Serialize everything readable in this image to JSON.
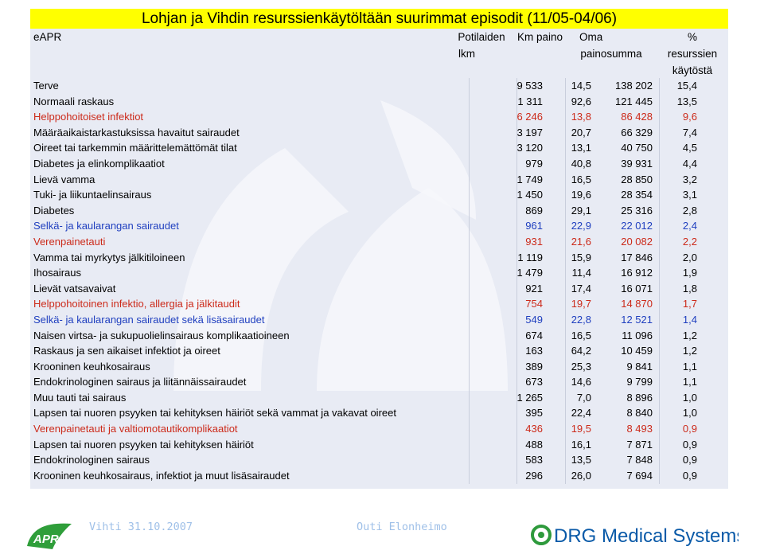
{
  "title": "Lohjan ja Vihdin resurssienkäytöltään suurimmat episodit (11/05-04/06)",
  "header": {
    "label": "eAPR",
    "col1": [
      "Potilaiden",
      "lkm"
    ],
    "col2": "Km paino",
    "col3": [
      "Oma",
      "painosumma"
    ],
    "col4": [
      "%",
      "resurssien",
      "käytöstä"
    ]
  },
  "rows": [
    {
      "label": "Terve",
      "n": "9 533",
      "w": "14,5",
      "sum": "138 202",
      "pct": "15,4",
      "color": "#000000"
    },
    {
      "label": "Normaali raskaus",
      "n": "1 311",
      "w": "92,6",
      "sum": "121 445",
      "pct": "13,5",
      "color": "#000000"
    },
    {
      "label": "Helppohoitoiset infektiot",
      "n": "6 246",
      "w": "13,8",
      "sum": "86 428",
      "pct": "9,6",
      "color": "#cc2a1a"
    },
    {
      "label": "Määräaikaistarkastuksissa havaitut sairaudet",
      "n": "3 197",
      "w": "20,7",
      "sum": "66 329",
      "pct": "7,4",
      "color": "#000000"
    },
    {
      "label": "Oireet tai tarkemmin määrittelemättömät tilat",
      "n": "3 120",
      "w": "13,1",
      "sum": "40 750",
      "pct": "4,5",
      "color": "#000000"
    },
    {
      "label": "Diabetes ja elinkomplikaatiot",
      "n": "979",
      "w": "40,8",
      "sum": "39 931",
      "pct": "4,4",
      "color": "#000000"
    },
    {
      "label": "Lievä vamma",
      "n": "1 749",
      "w": "16,5",
      "sum": "28 850",
      "pct": "3,2",
      "color": "#000000"
    },
    {
      "label": "Tuki- ja liikuntaelinsairaus",
      "n": "1 450",
      "w": "19,6",
      "sum": "28 354",
      "pct": "3,1",
      "color": "#000000"
    },
    {
      "label": "Diabetes",
      "n": "869",
      "w": "29,1",
      "sum": "25 316",
      "pct": "2,8",
      "color": "#000000"
    },
    {
      "label": "Selkä- ja kaularangan sairaudet",
      "n": "961",
      "w": "22,9",
      "sum": "22 012",
      "pct": "2,4",
      "color": "#1f3fbf"
    },
    {
      "label": "Verenpainetauti",
      "n": "931",
      "w": "21,6",
      "sum": "20 082",
      "pct": "2,2",
      "color": "#cc2a1a"
    },
    {
      "label": "Vamma tai myrkytys jälkitiloineen",
      "n": "1 119",
      "w": "15,9",
      "sum": "17 846",
      "pct": "2,0",
      "color": "#000000"
    },
    {
      "label": "Ihosairaus",
      "n": "1 479",
      "w": "11,4",
      "sum": "16 912",
      "pct": "1,9",
      "color": "#000000"
    },
    {
      "label": "Lievät vatsavaivat",
      "n": "921",
      "w": "17,4",
      "sum": "16 071",
      "pct": "1,8",
      "color": "#000000"
    },
    {
      "label": "Helppohoitoinen infektio, allergia ja jälkitaudit",
      "n": "754",
      "w": "19,7",
      "sum": "14 870",
      "pct": "1,7",
      "color": "#cc2a1a"
    },
    {
      "label": "Selkä- ja kaularangan sairaudet sekä lisäsairaudet",
      "n": "549",
      "w": "22,8",
      "sum": "12 521",
      "pct": "1,4",
      "color": "#1f3fbf"
    },
    {
      "label": "Naisen virtsa- ja sukupuolielinsairaus komplikaatioineen",
      "n": "674",
      "w": "16,5",
      "sum": "11 096",
      "pct": "1,2",
      "color": "#000000"
    },
    {
      "label": "Raskaus ja sen aikaiset infektiot ja oireet",
      "n": "163",
      "w": "64,2",
      "sum": "10 459",
      "pct": "1,2",
      "color": "#000000"
    },
    {
      "label": "Krooninen keuhkosairaus",
      "n": "389",
      "w": "25,3",
      "sum": "9 841",
      "pct": "1,1",
      "color": "#000000"
    },
    {
      "label": "Endokrinologinen sairaus ja liitännäissairaudet",
      "n": "673",
      "w": "14,6",
      "sum": "9 799",
      "pct": "1,1",
      "color": "#000000"
    },
    {
      "label": "Muu tauti tai sairaus",
      "n": "1 265",
      "w": "7,0",
      "sum": "8 896",
      "pct": "1,0",
      "color": "#000000"
    },
    {
      "label": "Lapsen tai nuoren psyyken tai kehityksen häiriöt sekä vammat ja vakavat oireet",
      "n": "395",
      "w": "22,4",
      "sum": "8 840",
      "pct": "1,0",
      "color": "#000000"
    },
    {
      "label": "Verenpainetauti ja valtiomotautikomplikaatiot",
      "n": "436",
      "w": "19,5",
      "sum": "8 493",
      "pct": "0,9",
      "color": "#cc2a1a"
    },
    {
      "label": "Lapsen tai nuoren psyyken tai kehityksen häiriöt",
      "n": "488",
      "w": "16,1",
      "sum": "7 871",
      "pct": "0,9",
      "color": "#000000"
    },
    {
      "label": "Endokrinologinen sairaus",
      "n": "583",
      "w": "13,5",
      "sum": "7 848",
      "pct": "0,9",
      "color": "#000000"
    },
    {
      "label": "Krooninen keuhkosairaus, infektiot ja muut lisäsairaudet",
      "n": "296",
      "w": "26,0",
      "sum": "7 694",
      "pct": "0,9",
      "color": "#000000"
    }
  ],
  "footer": {
    "left": "Vihti 31.10.2007",
    "center": "Outi Elonheimo",
    "apr_logo": "APR",
    "drg_logo": "DRG Medical Systems"
  }
}
